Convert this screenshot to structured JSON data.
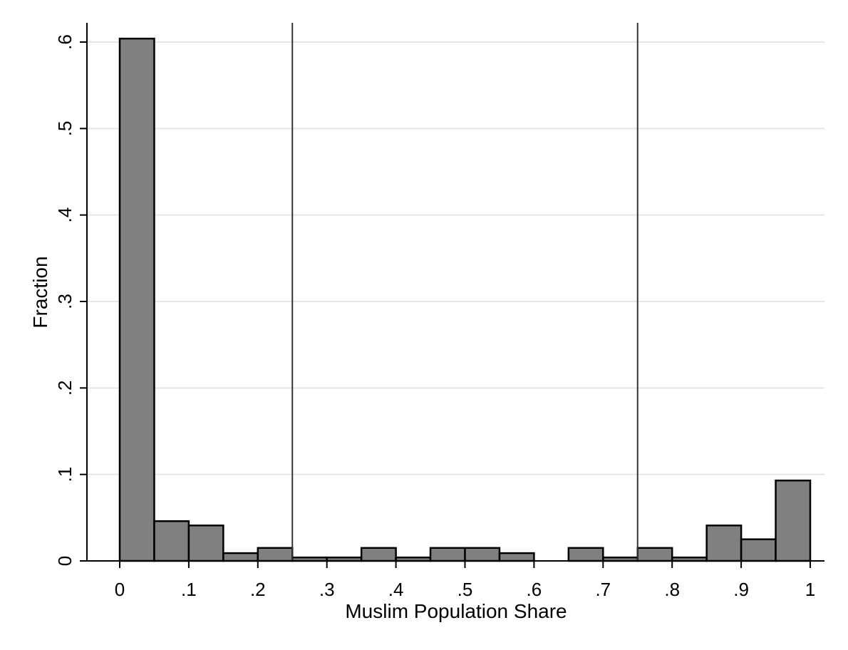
{
  "chart_data": {
    "type": "bar",
    "title": "",
    "xlabel": "Muslim Population Share",
    "ylabel": "Fraction",
    "xlim": [
      -0.05,
      1.02
    ],
    "ylim": [
      0,
      0.62
    ],
    "xticks": [
      0,
      0.1,
      0.2,
      0.3,
      0.4,
      0.5,
      0.6,
      0.7,
      0.8,
      0.9,
      1
    ],
    "xtick_labels": [
      "0",
      ".1",
      ".2",
      ".3",
      ".4",
      ".5",
      ".6",
      ".7",
      ".8",
      ".9",
      "1"
    ],
    "yticks": [
      0,
      0.1,
      0.2,
      0.3,
      0.4,
      0.5,
      0.6
    ],
    "ytick_labels": [
      "0",
      ".1",
      ".2",
      ".3",
      ".4",
      ".5",
      ".6"
    ],
    "grid": true,
    "bin_width": 0.05,
    "bins": [
      {
        "start": 0.0,
        "value": 0.604
      },
      {
        "start": 0.05,
        "value": 0.046
      },
      {
        "start": 0.1,
        "value": 0.041
      },
      {
        "start": 0.15,
        "value": 0.009
      },
      {
        "start": 0.2,
        "value": 0.015
      },
      {
        "start": 0.25,
        "value": 0.004
      },
      {
        "start": 0.3,
        "value": 0.004
      },
      {
        "start": 0.35,
        "value": 0.015
      },
      {
        "start": 0.4,
        "value": 0.004
      },
      {
        "start": 0.45,
        "value": 0.015
      },
      {
        "start": 0.5,
        "value": 0.015
      },
      {
        "start": 0.55,
        "value": 0.009
      },
      {
        "start": 0.6,
        "value": 0.0
      },
      {
        "start": 0.65,
        "value": 0.015
      },
      {
        "start": 0.7,
        "value": 0.004
      },
      {
        "start": 0.75,
        "value": 0.015
      },
      {
        "start": 0.8,
        "value": 0.004
      },
      {
        "start": 0.85,
        "value": 0.041
      },
      {
        "start": 0.9,
        "value": 0.025
      },
      {
        "start": 0.95,
        "value": 0.093
      }
    ],
    "reference_lines_x": [
      0.25,
      0.75
    ],
    "colors": {
      "bar_fill": "#808080",
      "bar_stroke": "#000000",
      "grid": "#e6e6e6"
    }
  }
}
